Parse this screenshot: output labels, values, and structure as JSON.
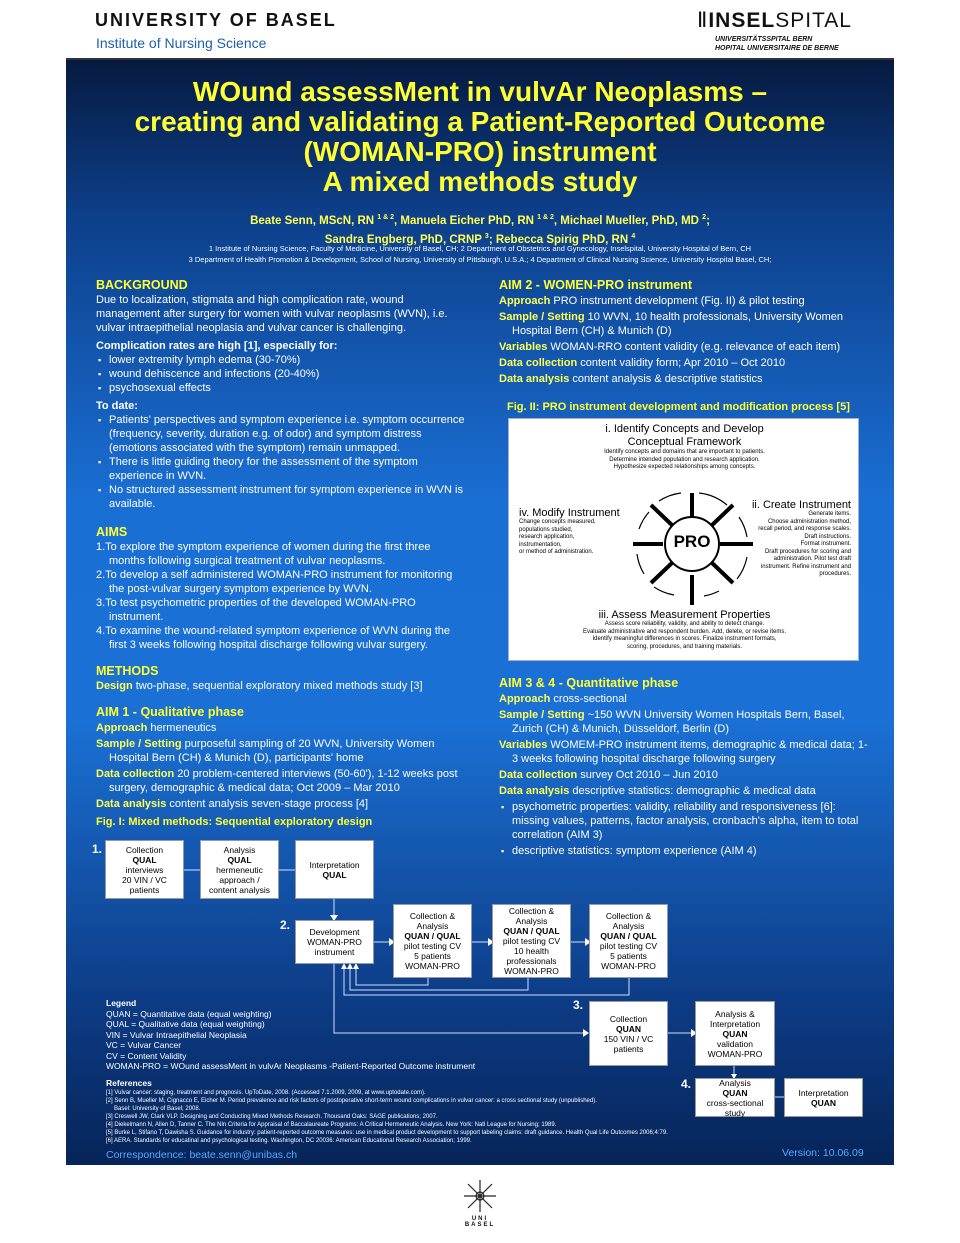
{
  "header": {
    "uni": "UNIVERSITY  OF  BASEL",
    "institute": "Institute of Nursing Science",
    "insel_bold": "INSEL",
    "insel_light": "SPITAL",
    "insel_sub1": "UNIVERSITÄTSSPITAL BERN",
    "insel_sub2": "HOPITAL UNIVERSITAIRE DE BERNE",
    "bottom_logo": "UNI BASEL"
  },
  "title": [
    "WOund assessMent in vulvAr Neoplasms –",
    "creating and validating a Patient-Reported Outcome",
    "(WOMAN-PRO) instrument",
    "A mixed methods study"
  ],
  "authors": {
    "a1": "Beate Senn, MScN, RN ",
    "s1": "1 & 2",
    "a2": ", Manuela Eicher PhD, RN ",
    "s2": "1 & 2",
    "a3": ", Michael Mueller, PhD, MD ",
    "s3": "2",
    "a4": ";",
    "a5": "Sandra Engberg, PhD, CRNP ",
    "s5": "3",
    "a6": "; Rebecca Spirig PhD, RN ",
    "s6": "4"
  },
  "affiliations": [
    "1  Institute of Nursing Science, Faculty of Medicine, University of Basel, CH; 2 Department of Obstetrics and Gynecology, Inselspital, University Hospital of Bern, CH",
    "3  Department of Health Promotion & Development, School of Nursing, University of Pittsburgh, U.S.A.; 4 Department of Clinical Nursing Science, University Hospital Basel, CH;"
  ],
  "background": {
    "heading": "BACKGROUND",
    "intro": "Due to localization, stigmata and high complication rate, wound management after surgery for women with vulvar neoplasms (WVN), i.e. vulvar intraepithelial neoplasia and vulvar cancer is challenging.",
    "comp_heading": "Complication rates are high [1], especially for:",
    "comp": [
      "lower extremity lymph edema (30-70%)",
      "wound dehiscence and infections (20-40%)",
      "psychosexual effects"
    ],
    "todate_heading": "To date:",
    "todate": [
      "Patients' perspectives and symptom experience i.e. symptom occurrence (frequency, severity, duration e.g. of odor) and symptom distress (emotions associated with the symptom) remain unmapped.",
      "There is little guiding theory for the assessment of the symptom experience in WVN.",
      "No structured assessment instrument for symptom experience in WVN is available."
    ]
  },
  "aims": {
    "heading": "AIMS",
    "items": [
      "1.To explore the symptom experience of women during the first three months following surgical treatment of vulvar neoplasms.",
      "2.To develop a self administered WOMAN-PRO instrument for monitoring the post-vulvar surgery symptom experience by WVN.",
      "3.To test psychometric properties of the developed WOMAN-PRO instrument.",
      "4.To examine the wound-related symptom experience of WVN during the first 3 weeks following hospital discharge following vulvar surgery."
    ]
  },
  "methods": {
    "heading": "METHODS",
    "design_label": "Design",
    "design": " two-phase, sequential exploratory mixed methods study [3]"
  },
  "aim1": {
    "heading": "AIM 1 - Qualitative phase",
    "items": [
      {
        "label": "Approach",
        "text": " hermeneutics"
      },
      {
        "label": "Sample / Setting",
        "text": " purposeful sampling of 20 WVN, University Women Hospital Bern (CH) & Munich (D), participants' home"
      },
      {
        "label": "Data collection",
        "text": " 20 problem-centered interviews (50-60'), 1-12 weeks post surgery, demographic & medical data; Oct 2009 – Mar 2010"
      },
      {
        "label": "Data analysis",
        "text": " content analysis seven-stage process [4]"
      }
    ]
  },
  "fig1": {
    "caption": "Fig. I: Mixed methods: Sequential exploratory design",
    "steps": [
      "1.",
      "2.",
      "3.",
      "4."
    ],
    "boxes": {
      "a": [
        "Collection",
        "QUAL",
        "interviews",
        "20 VIN / VC",
        "patients"
      ],
      "b": [
        "Analysis",
        "QUAL",
        "hermeneutic",
        "approach /",
        "content analysis"
      ],
      "c": [
        "Interpretation",
        "QUAL"
      ],
      "d": [
        "Development",
        "WOMAN-PRO",
        "instrument"
      ],
      "e": [
        "Collection &",
        "Analysis",
        "QUAN / QUAL",
        "pilot testing CV",
        "5 patients",
        "WOMAN-PRO"
      ],
      "f": [
        "Collection &",
        "Analysis",
        "QUAN / QUAL",
        "pilot testing CV",
        "10 health",
        "professionals",
        "WOMAN-PRO"
      ],
      "g": [
        "Collection &",
        "Analysis",
        "QUAN / QUAL",
        "pilot testing CV",
        "5 patients",
        "WOMAN-PRO"
      ],
      "h": [
        "Collection",
        "QUAN",
        "150 VIN / VC",
        "patients"
      ],
      "i": [
        "Analysis &",
        "Interpretation",
        "QUAN",
        "validation",
        "WOMAN-PRO"
      ],
      "j": [
        "Analysis",
        "QUAN",
        "cross-sectional",
        "study"
      ],
      "k": [
        "Interpretation",
        "QUAN"
      ]
    }
  },
  "legend": {
    "heading": "Legend",
    "items": [
      "QUAN = Quantitative data (equal weighting)",
      "QUAL = Qualitative data (equal weighting)",
      "VIN = Vulvar Intraepithelial Neoplasia",
      "VC = Vulvar Cancer",
      "CV = Content Validity",
      "WOMAN-PRO = WOund assessMent in vulvAr Neoplasms -Patient-Reported Outcome instrument"
    ]
  },
  "references": {
    "heading": "References",
    "items": [
      "[1] Vulvar cancer: staging, treatment and prognosis. UpToDate, 2008. (Accessed 7.1.2009, 2009, at www.uptodate.com).",
      "[2] Senn B, Mueller M, Cignacco E, Eicher M. Period prevalence and risk factors of postoperative short-term wound complications in vulvar cancer: a cross sectional study (unpublished).",
      "     Basel: University of Basel; 2008.",
      "[3] Creswell JW, Clark VLP. Designing and Conducting Mixed Methods Research. Thousand Oaks: SAGE publications; 2007.",
      "[4] Diekelmann N, Allen D, Tanner C. The Nln Criteria for Appraisal of Baccalaureate Programs: A Critical Hermeneutic Analysis. New York: Natl League for Nursing; 1989.",
      "[5] Burke L, Stifano T, Dawisha S. Guidance for industry: patient-reported outcome measures: use in medical product development to support labeling claims: draft guidance. Health Qual Life Outcomes 2006;4:79.",
      "[6] AERA. Standards for educatinal and psychological testing. Washington, DC 20036: American Educational Research Association; 1999."
    ]
  },
  "correspondence": "Correspondence: beate.senn@unibas.ch",
  "version": "Version: 10.06.09",
  "aim2": {
    "heading": "AIM 2 - WOMEN-PRO instrument",
    "items": [
      {
        "label": "Approach",
        "text": "  PRO instrument development (Fig. II) & pilot testing"
      },
      {
        "label": "Sample / Setting",
        "text": " 10 WVN, 10 health professionals, University Women Hospital Bern (CH) & Munich (D)"
      },
      {
        "label": "Variables",
        "text": " WOMAN-RRO content validity (e.g. relevance of each item)"
      },
      {
        "label": "Data collection",
        "text": " content validity form; Apr 2010 – Oct 2010"
      },
      {
        "label": "Data analysis",
        "text": " content analysis & descriptive statistics"
      }
    ]
  },
  "fig2": {
    "caption": "Fig. II: PRO instrument development and modification process [5]",
    "center": "PRO",
    "i_title": [
      "i. Identify Concepts and Develop",
      "Conceptual Framework"
    ],
    "i_text": [
      "Identify concepts and domains that are important to patients.",
      "Determine intended population and research application.",
      "Hypothesize expected relationships among concepts."
    ],
    "ii_title": "ii. Create Instrument",
    "ii_text": [
      "Generate items.",
      "Choose administration method,",
      "recall period, and response scales.",
      "Draft instructions.",
      "Format instrument.",
      "Draft procedures for scoring and",
      "administration. Pilot test draft",
      "instrument. Refine instrument and",
      "procedures."
    ],
    "iii_title": "iii. Assess Measurement Properties",
    "iii_text": [
      "Assess score reliability, validity, and ability to detect change.",
      "Evaluate administrative and respondent burden. Add, delete, or revise items.",
      "Identify meaningful differences in scores. Finalize instrument formats,",
      "scoring, procedures, and training materials."
    ],
    "iv_title": "iv. Modify Instrument",
    "iv_text": [
      "Change concepts measured,",
      "populations studied,",
      "research application,",
      "instrumentation,",
      "or method of administration."
    ]
  },
  "aim34": {
    "heading": "AIM 3 & 4 - Quantitative phase",
    "items": [
      {
        "label": "Approach",
        "text": " cross-sectional"
      },
      {
        "label": "Sample / Setting",
        "text": " ~150 WVN University Women Hospitals Bern, Basel, Zurich (CH) & Munich, Düsseldorf, Berlin (D)"
      },
      {
        "label": "Variables",
        "text": "  WOMEM-PRO instrument items, demographic & medical data; 1-3 weeks following hospital discharge following surgery"
      },
      {
        "label": "Data collection",
        "text": " survey Oct 2010 – Jun 2010"
      },
      {
        "label": "Data analysis",
        "text": " descriptive statistics: demographic & medical data"
      }
    ],
    "bullets": [
      "psychometric properties: validity, reliability and responsiveness [6]: missing values, patterns, factor analysis, cronbach's alpha, item to total correlation (AIM 3)",
      "descriptive statistics: symptom experience (AIM 4)"
    ]
  }
}
